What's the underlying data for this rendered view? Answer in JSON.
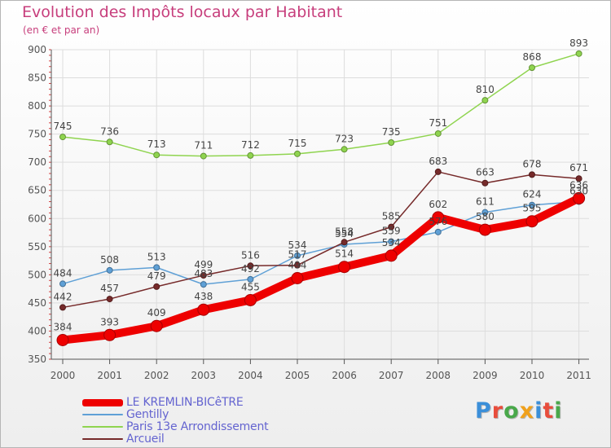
{
  "title": "Evolution des Impôts locaux par Habitant",
  "subtitle": "(en € et par an)",
  "logo": {
    "text": "Proxiti",
    "colors": [
      "#3b8fd9",
      "#e84d3c",
      "#49a84a",
      "#f0a11c",
      "#3b8fd9",
      "#e84d3c",
      "#49a84a"
    ]
  },
  "colors": {
    "title": "#c73e7c",
    "legend_text": "#6464d0",
    "axis": "#555555",
    "grid": "#dddddd",
    "value_label": "#444444"
  },
  "chart_data": {
    "type": "line",
    "x": [
      "2000",
      "2001",
      "2002",
      "2003",
      "2004",
      "2005",
      "2006",
      "2007",
      "2008",
      "2009",
      "2010",
      "2011"
    ],
    "ylim": [
      350,
      900
    ],
    "yticks": [
      350,
      400,
      450,
      500,
      550,
      600,
      650,
      700,
      750,
      800,
      850,
      900
    ],
    "grid": true,
    "legend_position": "bottom-left",
    "series": [
      {
        "name": "Paris 13e  Arrondissement",
        "color": "#8fd44f",
        "values": [
          745,
          736,
          713,
          711,
          712,
          715,
          723,
          735,
          751,
          810,
          868,
          893
        ]
      },
      {
        "name": "Gentilly",
        "color": "#5fa0d6",
        "values": [
          484,
          508,
          513,
          483,
          492,
          534,
          554,
          559,
          576,
          611,
          624,
          630
        ]
      },
      {
        "name": "Arcueil",
        "color": "#762a2a",
        "values": [
          442,
          457,
          479,
          499,
          516,
          517,
          558,
          585,
          683,
          663,
          678,
          671
        ]
      },
      {
        "name": "LE KREMLIN-BICêTRE",
        "color": "#ee0000",
        "bold": true,
        "values": [
          384,
          393,
          409,
          438,
          455,
          494,
          514,
          534,
          602,
          580,
          595,
          636
        ]
      }
    ]
  },
  "legend": [
    {
      "label": "LE KREMLIN-BICêTRE",
      "color": "#ee0000"
    },
    {
      "label": "Gentilly",
      "color": "#5fa0d6"
    },
    {
      "label": "Paris 13e  Arrondissement",
      "color": "#8fd44f"
    },
    {
      "label": "Arcueil",
      "color": "#762a2a"
    }
  ]
}
